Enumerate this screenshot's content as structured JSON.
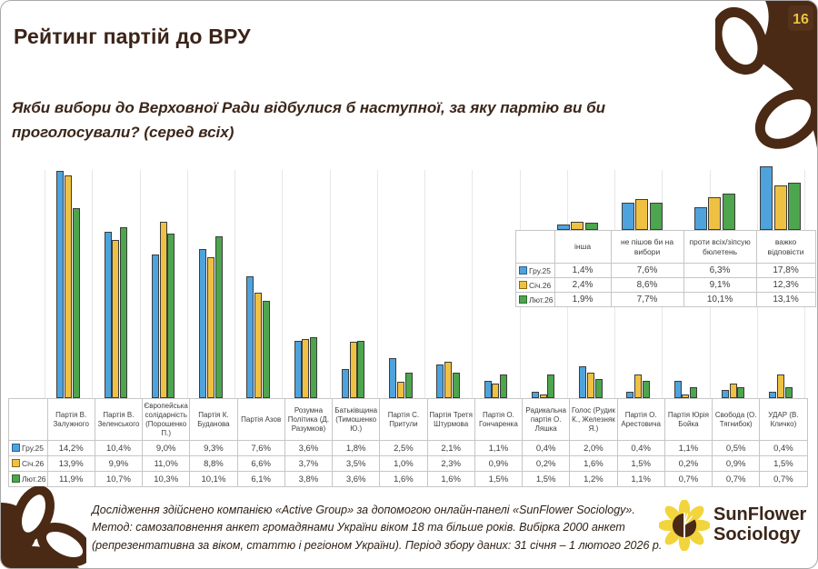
{
  "page": {
    "number": "16",
    "title": "Рейтинг партій до ВРУ",
    "subtitle_lines": [
      "Якби вибори до Верховної Ради відбулися б наступної, за яку партію ви би",
      "проголосували? (серед всіх)"
    ]
  },
  "colors": {
    "series": [
      "#4FA3DC",
      "#EFC143",
      "#4DA54D"
    ],
    "series_border": [
      "#27608f",
      "#8a6a14",
      "#2e6b2e"
    ],
    "brown": "#4A2A15",
    "badge_gold": "#E9C43F"
  },
  "chart_data": {
    "type": "bar",
    "title": "Рейтинг партій до ВРУ",
    "unit": "%",
    "grid": "faint vertical category separators",
    "legend_position": "table first column",
    "ylim": [
      0,
      18
    ],
    "main": {
      "categories": [
        "Партія В. Залужного",
        "Партія В. Зеленського",
        "Європейська солідарність (Порошенко П.)",
        "Партія К. Буданова",
        "Партія Азов",
        "Розумна Політика (Д. Разумков)",
        "Батьківщина (Тимошенко Ю.)",
        "Партія С. Притули",
        "Партія Третя Штурмова",
        "Партія О. Гончаренка",
        "Радикальна партія О. Ляшка",
        "Голос (Рудик К., Железняк Я.)",
        "Партія О. Арестовича",
        "Партія Юрія Бойка",
        "Свобода (О. Тягнибок)",
        "УДАР (В. Кличко)"
      ],
      "series": [
        {
          "name": "Гру.25",
          "values": [
            14.2,
            10.4,
            9.0,
            9.3,
            7.6,
            3.6,
            1.8,
            2.5,
            2.1,
            1.1,
            0.4,
            2.0,
            0.4,
            1.1,
            0.5,
            0.4
          ]
        },
        {
          "name": "Січ.26",
          "values": [
            13.9,
            9.9,
            11.0,
            8.8,
            6.6,
            3.7,
            3.5,
            1.0,
            2.3,
            0.9,
            0.2,
            1.6,
            1.5,
            0.2,
            0.9,
            1.5
          ]
        },
        {
          "name": "Лют.26",
          "values": [
            11.9,
            10.7,
            10.3,
            10.1,
            6.1,
            3.8,
            3.6,
            1.6,
            1.6,
            1.5,
            1.5,
            1.2,
            1.1,
            0.7,
            0.7,
            0.7
          ]
        }
      ]
    },
    "overlay": {
      "categories": [
        "інша",
        "не пішов би на вибори",
        "проти всіх/зіпсую бюлетень",
        "важко відповісти"
      ],
      "series": [
        {
          "name": "Гру.25",
          "values": [
            1.4,
            7.6,
            6.3,
            17.8
          ]
        },
        {
          "name": "Січ.26",
          "values": [
            2.4,
            8.6,
            9.1,
            12.3
          ]
        },
        {
          "name": "Лют.26",
          "values": [
            1.9,
            7.7,
            10.1,
            13.1
          ]
        }
      ]
    }
  },
  "footer": {
    "lines": [
      "Дослідження здійснено компанією «Active Group» за допомогою онлайн-панелі «SunFlower Sociology».",
      "Метод: самозаповнення анкет громадянами України віком 18 та більше років. Вибірка 2000 анкет",
      "(репрезентативна за віком, статтю і регіоном України). Період збору даних: 31 січня – 1 лютого 2026 р."
    ]
  },
  "logo": {
    "line1": "SunFlower",
    "line2": "Sociology"
  }
}
